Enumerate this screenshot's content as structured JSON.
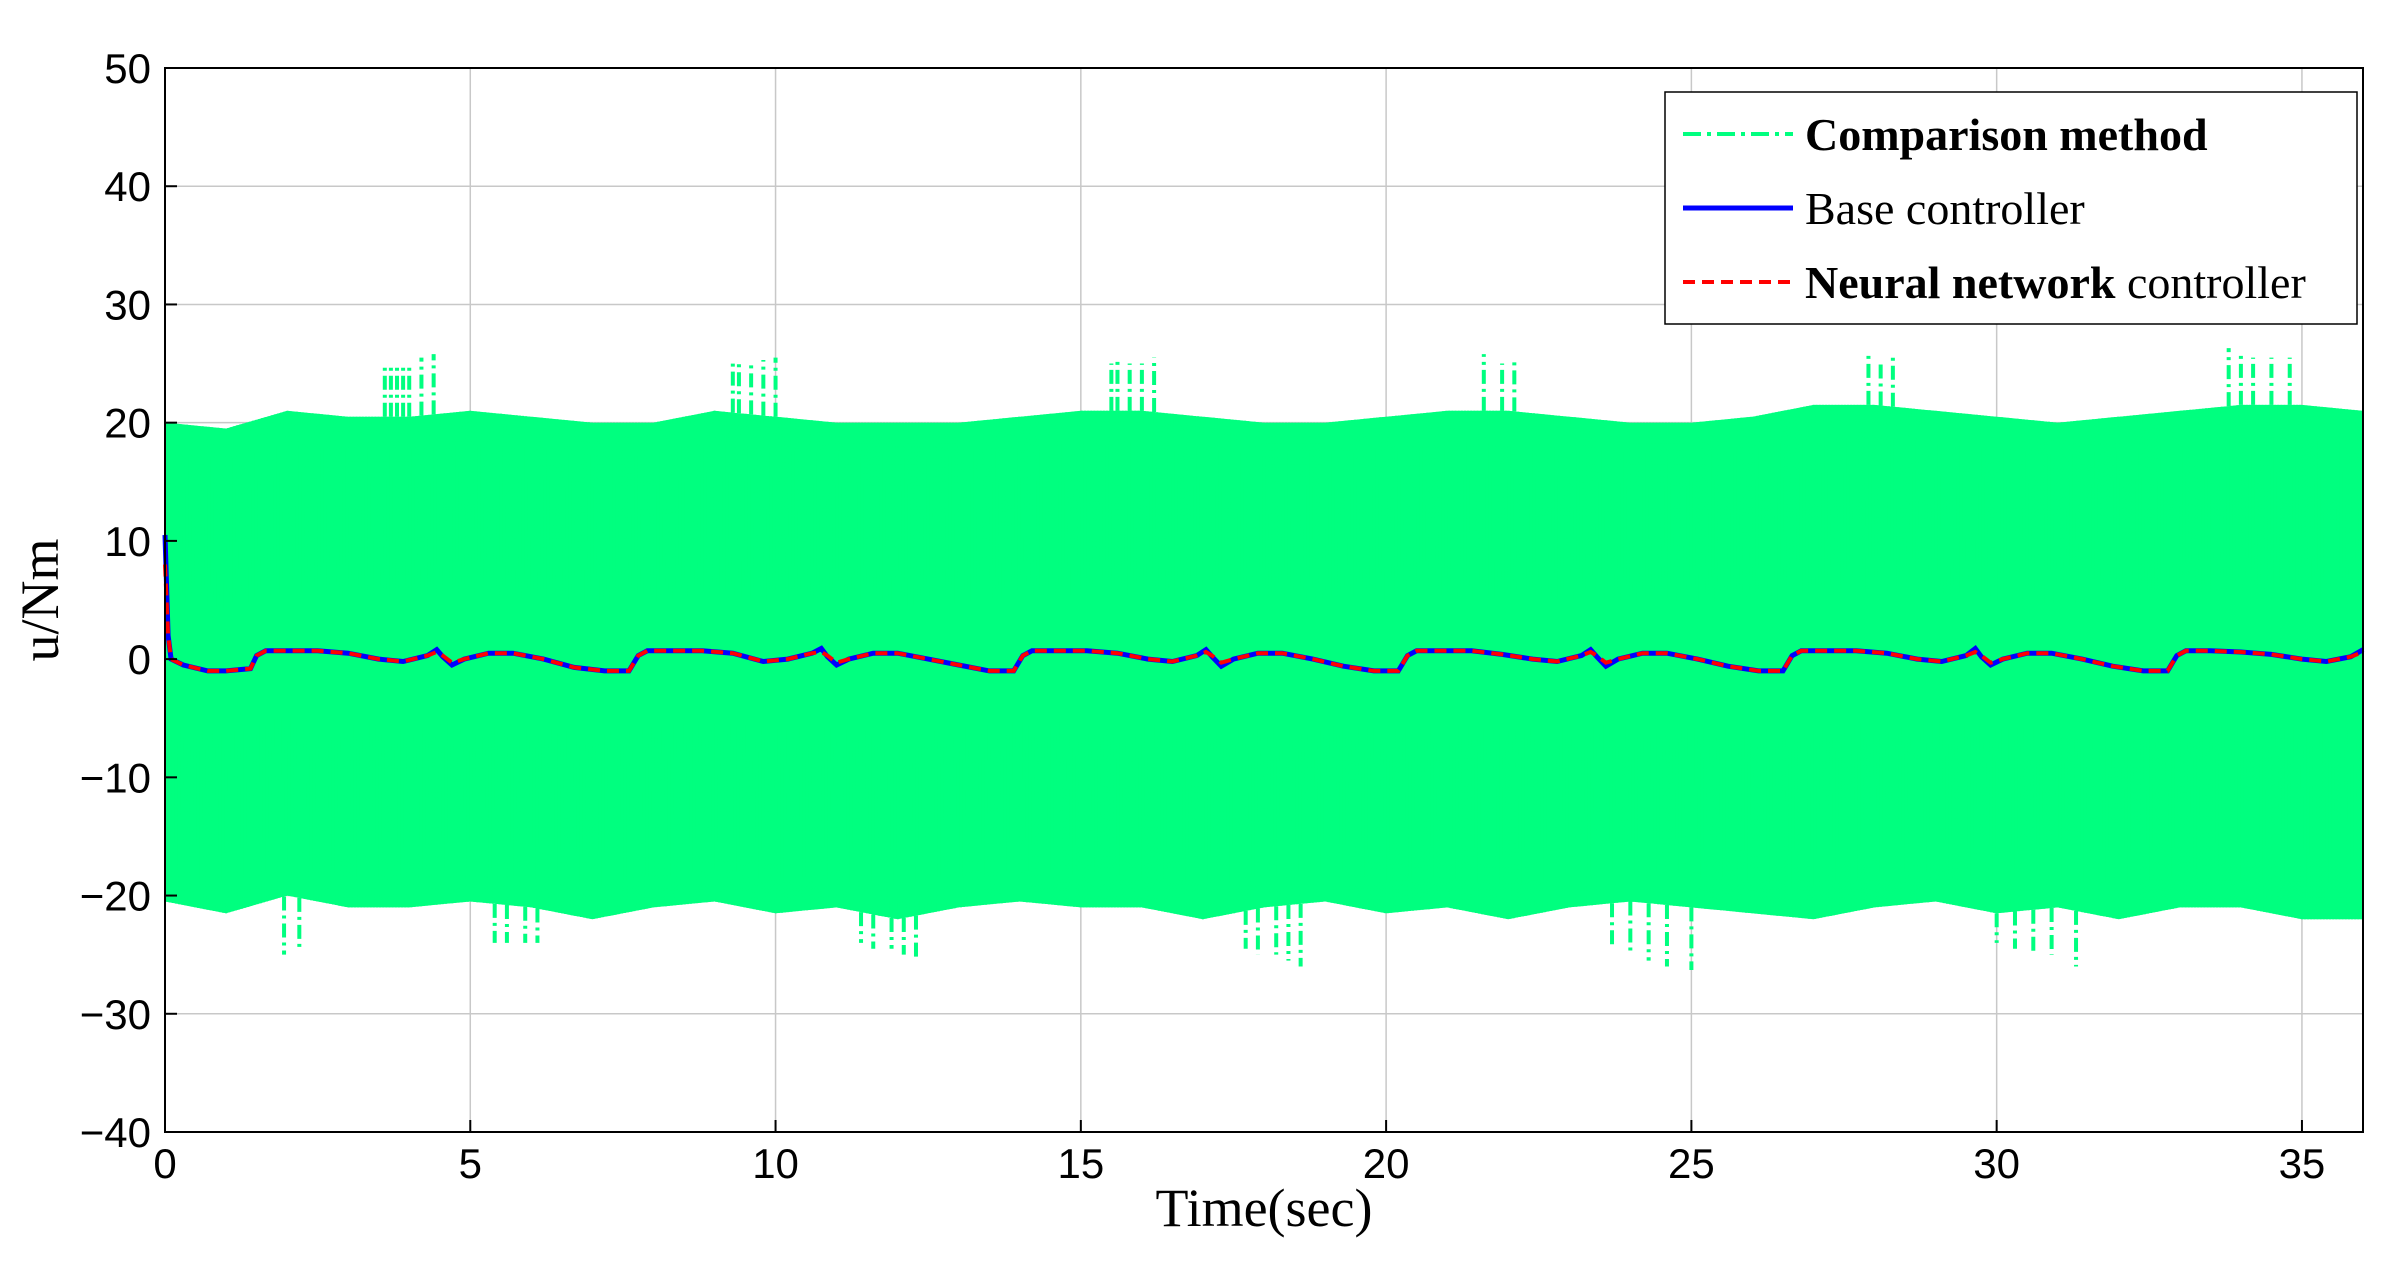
{
  "chart_data": {
    "type": "line",
    "title": "",
    "xlabel": "Time(sec)",
    "ylabel": "u/Nm",
    "xlim": [
      0,
      36
    ],
    "ylim": [
      -40,
      50
    ],
    "xticks": [
      0,
      5,
      10,
      15,
      20,
      25,
      30,
      35
    ],
    "yticks": [
      -40,
      -30,
      -20,
      -10,
      0,
      10,
      20,
      30,
      40,
      50
    ],
    "xtick_labels": [
      "0",
      "5",
      "10",
      "15",
      "20",
      "25",
      "30",
      "35"
    ],
    "ytick_labels": [
      "−40",
      "−30",
      "−20",
      "−10",
      "0",
      "10",
      "20",
      "30",
      "40",
      "50"
    ],
    "grid": true,
    "legend_position": "top-right",
    "legend": [
      {
        "label_bold": "Comparison method",
        "label_plain": "",
        "color": "#00ff7f",
        "style": "dash-dot"
      },
      {
        "label_bold": "",
        "label_plain": "Base controller",
        "color": "#0000ff",
        "style": "solid"
      },
      {
        "label_bold": "Neural network",
        "label_plain": " controller",
        "color": "#ff0000",
        "style": "dashed"
      }
    ],
    "series": [
      {
        "name": "Comparison method",
        "color": "#00ff7f",
        "kind": "oscillation-band",
        "upper_envelope": {
          "x": [
            0,
            1,
            2,
            3,
            4,
            5,
            6,
            7,
            8,
            9,
            10,
            11,
            12,
            13,
            14,
            15,
            16,
            17,
            18,
            19,
            20,
            21,
            22,
            23,
            24,
            25,
            26,
            27,
            28,
            29,
            30,
            31,
            32,
            33,
            34,
            35,
            36
          ],
          "y": [
            20,
            19.5,
            21,
            20.5,
            20.5,
            21,
            20.5,
            20,
            20,
            21,
            20.5,
            20,
            20,
            20,
            20.5,
            21,
            21,
            20.5,
            20,
            20,
            20.5,
            21,
            21,
            20.5,
            20,
            20,
            20.5,
            21.5,
            21.5,
            21,
            20.5,
            20,
            20.5,
            21,
            21.5,
            21.5,
            21
          ]
        },
        "lower_envelope": {
          "x": [
            0,
            1,
            2,
            3,
            4,
            5,
            6,
            7,
            8,
            9,
            10,
            11,
            12,
            13,
            14,
            15,
            16,
            17,
            18,
            19,
            20,
            21,
            22,
            23,
            24,
            25,
            26,
            27,
            28,
            29,
            30,
            31,
            32,
            33,
            34,
            35,
            36
          ],
          "y": [
            -20.5,
            -21.5,
            -20,
            -21,
            -21,
            -20.5,
            -21,
            -22,
            -21,
            -20.5,
            -21.5,
            -21,
            -22,
            -21,
            -20.5,
            -21,
            -21,
            -22,
            -21,
            -20.5,
            -21.5,
            -21,
            -22,
            -21,
            -20.5,
            -21,
            -21.5,
            -22,
            -21,
            -20.5,
            -21.5,
            -21,
            -22,
            -21,
            -21,
            -22,
            -22
          ]
        },
        "spikes_up": [
          [
            3.6,
            25
          ],
          [
            3.7,
            25
          ],
          [
            3.8,
            24.8
          ],
          [
            3.9,
            25
          ],
          [
            4.0,
            25
          ],
          [
            4.2,
            25.5
          ],
          [
            4.4,
            25.8
          ],
          [
            9.3,
            25
          ],
          [
            9.4,
            25
          ],
          [
            9.6,
            25
          ],
          [
            9.8,
            25.3
          ],
          [
            10.0,
            25.5
          ],
          [
            15.5,
            25
          ],
          [
            15.6,
            25.3
          ],
          [
            15.8,
            25
          ],
          [
            16.0,
            25
          ],
          [
            16.2,
            25.5
          ],
          [
            21.6,
            25.8
          ],
          [
            21.9,
            25
          ],
          [
            22.1,
            25.5
          ],
          [
            27.9,
            25.8
          ],
          [
            28.1,
            25.3
          ],
          [
            28.3,
            25.5
          ],
          [
            33.8,
            26.3
          ],
          [
            34.0,
            26
          ],
          [
            34.2,
            25.5
          ],
          [
            34.5,
            25.5
          ],
          [
            34.8,
            25.5
          ]
        ],
        "spikes_down": [
          [
            1.95,
            -25
          ],
          [
            2.2,
            -24.5
          ],
          [
            5.4,
            -24
          ],
          [
            5.6,
            -24
          ],
          [
            5.9,
            -24
          ],
          [
            6.1,
            -24
          ],
          [
            11.4,
            -24
          ],
          [
            11.6,
            -24.5
          ],
          [
            11.9,
            -24.5
          ],
          [
            12.1,
            -25
          ],
          [
            12.3,
            -25.5
          ],
          [
            17.7,
            -24.5
          ],
          [
            17.9,
            -25
          ],
          [
            18.2,
            -25
          ],
          [
            18.4,
            -25.5
          ],
          [
            18.6,
            -26
          ],
          [
            23.7,
            -24.5
          ],
          [
            24.0,
            -25
          ],
          [
            24.3,
            -25.5
          ],
          [
            24.6,
            -26
          ],
          [
            25.0,
            -26.3
          ],
          [
            30.0,
            -24
          ],
          [
            30.3,
            -24.5
          ],
          [
            30.6,
            -25
          ],
          [
            30.9,
            -25
          ],
          [
            31.3,
            -26
          ]
        ]
      },
      {
        "name": "Base controller",
        "color": "#0000ff",
        "x": [
          0,
          0.05,
          0.1,
          0.3,
          0.7,
          1.0,
          1.4,
          1.5,
          1.65,
          2.0,
          2.5,
          3.0,
          3.5,
          3.9,
          4.3,
          4.45,
          4.55,
          4.7,
          4.9,
          5.3,
          5.7,
          6.2,
          6.7,
          7.2,
          7.6,
          7.75,
          7.9,
          8.3,
          8.8,
          9.3,
          9.8,
          10.2,
          10.6,
          10.75,
          10.85,
          11.0,
          11.2,
          11.6,
          12.0,
          12.5,
          13.0,
          13.5,
          13.9,
          14.05,
          14.2,
          14.6,
          15.1,
          15.6,
          16.1,
          16.5,
          16.9,
          17.05,
          17.15,
          17.3,
          17.5,
          17.9,
          18.3,
          18.8,
          19.3,
          19.8,
          20.2,
          20.35,
          20.5,
          20.9,
          21.4,
          21.9,
          22.4,
          22.8,
          23.2,
          23.35,
          23.45,
          23.6,
          23.8,
          24.2,
          24.6,
          25.1,
          25.6,
          26.1,
          26.5,
          26.65,
          26.8,
          27.2,
          27.7,
          28.2,
          28.7,
          29.1,
          29.5,
          29.65,
          29.75,
          29.9,
          30.1,
          30.5,
          30.9,
          31.4,
          31.9,
          32.4,
          32.8,
          32.95,
          33.1,
          33.5,
          34.0,
          34.5,
          35.0,
          35.4,
          35.8,
          36.0
        ],
        "y": [
          10.5,
          2,
          0,
          -0.5,
          -1,
          -1,
          -0.8,
          0.3,
          0.7,
          0.7,
          0.7,
          0.5,
          0,
          -0.2,
          0.3,
          0.8,
          0.2,
          -0.5,
          0,
          0.5,
          0.5,
          0,
          -0.7,
          -1,
          -1,
          0.3,
          0.7,
          0.7,
          0.7,
          0.5,
          -0.2,
          0,
          0.5,
          0.9,
          0.2,
          -0.5,
          0,
          0.5,
          0.5,
          0,
          -0.5,
          -1,
          -1,
          0.3,
          0.7,
          0.7,
          0.7,
          0.5,
          0,
          -0.2,
          0.3,
          0.8,
          0.2,
          -0.6,
          0,
          0.5,
          0.5,
          0,
          -0.6,
          -1,
          -1,
          0.3,
          0.7,
          0.7,
          0.7,
          0.4,
          0,
          -0.2,
          0.3,
          0.8,
          0.2,
          -0.6,
          0,
          0.5,
          0.5,
          0,
          -0.6,
          -1,
          -1,
          0.3,
          0.7,
          0.7,
          0.7,
          0.5,
          0,
          -0.2,
          0.3,
          0.9,
          0.2,
          -0.5,
          0,
          0.5,
          0.5,
          0,
          -0.6,
          -1,
          -1,
          0.3,
          0.7,
          0.7,
          0.6,
          0.4,
          0,
          -0.2,
          0.2,
          0.8
        ]
      },
      {
        "name": "Neural network controller",
        "color": "#ff0000",
        "x": [
          0,
          0.05,
          0.1,
          0.3,
          0.7,
          1.0,
          1.4,
          1.5,
          1.65,
          2.0,
          2.5,
          3.0,
          3.5,
          3.9,
          4.3,
          4.45,
          4.55,
          4.7,
          4.9,
          5.3,
          5.7,
          6.2,
          6.7,
          7.2,
          7.6,
          7.75,
          7.9,
          8.3,
          8.8,
          9.3,
          9.8,
          10.2,
          10.6,
          10.75,
          10.85,
          11.0,
          11.2,
          11.6,
          12.0,
          12.5,
          13.0,
          13.5,
          13.9,
          14.05,
          14.2,
          14.6,
          15.1,
          15.6,
          16.1,
          16.5,
          16.9,
          17.05,
          17.15,
          17.3,
          17.5,
          17.9,
          18.3,
          18.8,
          19.3,
          19.8,
          20.2,
          20.35,
          20.5,
          20.9,
          21.4,
          21.9,
          22.4,
          22.8,
          23.2,
          23.35,
          23.45,
          23.6,
          23.8,
          24.2,
          24.6,
          25.1,
          25.6,
          26.1,
          26.5,
          26.65,
          26.8,
          27.2,
          27.7,
          28.2,
          28.7,
          29.1,
          29.5,
          29.65,
          29.75,
          29.9,
          30.1,
          30.5,
          30.9,
          31.4,
          31.9,
          32.4,
          32.8,
          32.95,
          33.1,
          33.5,
          34.0,
          34.5,
          35.0,
          35.4,
          35.8,
          36.0
        ],
        "y": [
          8,
          2,
          0,
          -0.5,
          -1,
          -1,
          -0.8,
          0.3,
          0.7,
          0.7,
          0.7,
          0.5,
          0,
          -0.2,
          0.3,
          0.6,
          0.3,
          -0.3,
          0,
          0.5,
          0.5,
          0,
          -0.7,
          -1,
          -1,
          0.3,
          0.7,
          0.7,
          0.7,
          0.5,
          -0.2,
          0,
          0.5,
          0.6,
          0.3,
          -0.3,
          0,
          0.5,
          0.5,
          0,
          -0.5,
          -1,
          -1,
          0.3,
          0.7,
          0.7,
          0.7,
          0.5,
          0,
          -0.2,
          0.3,
          0.6,
          0.3,
          -0.3,
          0,
          0.5,
          0.5,
          0,
          -0.6,
          -1,
          -1,
          0.3,
          0.7,
          0.7,
          0.7,
          0.4,
          0,
          -0.2,
          0.3,
          0.6,
          0.3,
          -0.3,
          0,
          0.5,
          0.5,
          0,
          -0.6,
          -1,
          -1,
          0.3,
          0.7,
          0.7,
          0.7,
          0.5,
          0,
          -0.2,
          0.3,
          0.6,
          0.3,
          -0.3,
          0,
          0.5,
          0.5,
          0,
          -0.6,
          -1,
          -1,
          0.3,
          0.7,
          0.7,
          0.6,
          0.4,
          0,
          -0.2,
          0.2,
          0.6
        ]
      }
    ]
  }
}
